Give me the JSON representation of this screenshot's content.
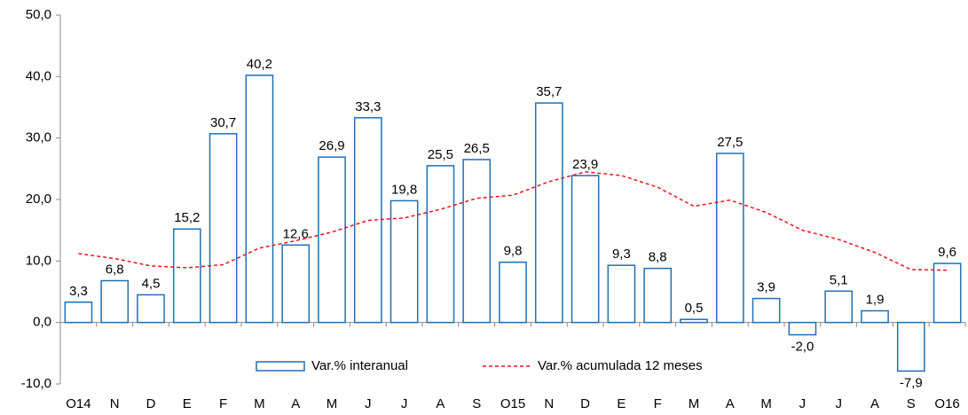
{
  "chart_data": {
    "type": "bar-line",
    "categories": [
      "O14",
      "N",
      "D",
      "E",
      "F",
      "M",
      "A",
      "M",
      "J",
      "J",
      "A",
      "S",
      "O15",
      "N",
      "D",
      "E",
      "F",
      "M",
      "A",
      "M",
      "J",
      "J",
      "A",
      "S",
      "O16"
    ],
    "series": [
      {
        "name": "Var.% interanual",
        "type": "bar",
        "color": "#1f6fb5",
        "values": [
          3.3,
          6.8,
          4.5,
          15.2,
          30.7,
          40.2,
          12.6,
          26.9,
          33.3,
          19.8,
          25.5,
          26.5,
          9.8,
          35.7,
          23.9,
          9.3,
          8.8,
          0.5,
          27.5,
          3.9,
          -2.0,
          5.1,
          1.9,
          -7.9,
          9.6
        ],
        "value_labels": [
          "3,3",
          "6,8",
          "4,5",
          "15,2",
          "30,7",
          "40,2",
          "12,6",
          "26,9",
          "33,3",
          "19,8",
          "25,5",
          "26,5",
          "9,8",
          "35,7",
          "23,9",
          "9,3",
          "8,8",
          "0,5",
          "27,5",
          "3,9",
          "-2,0",
          "5,1",
          "1,9",
          "-7,9",
          "9,6"
        ]
      },
      {
        "name": "Var.% acumulada 12 meses",
        "type": "line",
        "color": "#e8141b",
        "values": [
          11.2,
          10.4,
          9.2,
          8.9,
          9.4,
          12.1,
          13.3,
          14.7,
          16.6,
          17.0,
          18.4,
          20.2,
          20.7,
          22.9,
          24.5,
          23.9,
          22.0,
          18.9,
          19.9,
          17.9,
          15.0,
          13.5,
          11.4,
          8.6,
          8.5
        ]
      }
    ],
    "ylim": [
      -10,
      50
    ],
    "yticks": [
      {
        "value": -10,
        "label": "-10,0"
      },
      {
        "value": 0,
        "label": "0,0"
      },
      {
        "value": 10,
        "label": "10,0"
      },
      {
        "value": 20,
        "label": "20,0"
      },
      {
        "value": 30,
        "label": "30,0"
      },
      {
        "value": 40,
        "label": "40,0"
      },
      {
        "value": 50,
        "label": "50,0"
      }
    ]
  }
}
